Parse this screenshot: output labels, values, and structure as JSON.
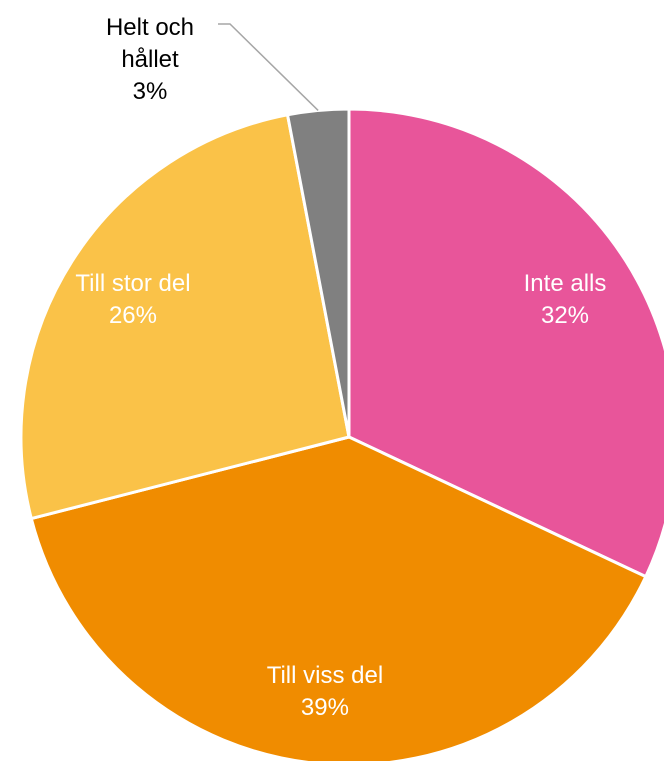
{
  "chart_data": {
    "type": "pie",
    "categories": [
      "Inte alls",
      "Till viss del",
      "Till stor del",
      "Helt och hållet"
    ],
    "values": [
      32,
      39,
      26,
      3
    ],
    "value_labels": [
      "32%",
      "39%",
      "26%",
      "3%"
    ],
    "colors": [
      "#e8559a",
      "#f08c00",
      "#fac248",
      "#808080"
    ]
  }
}
